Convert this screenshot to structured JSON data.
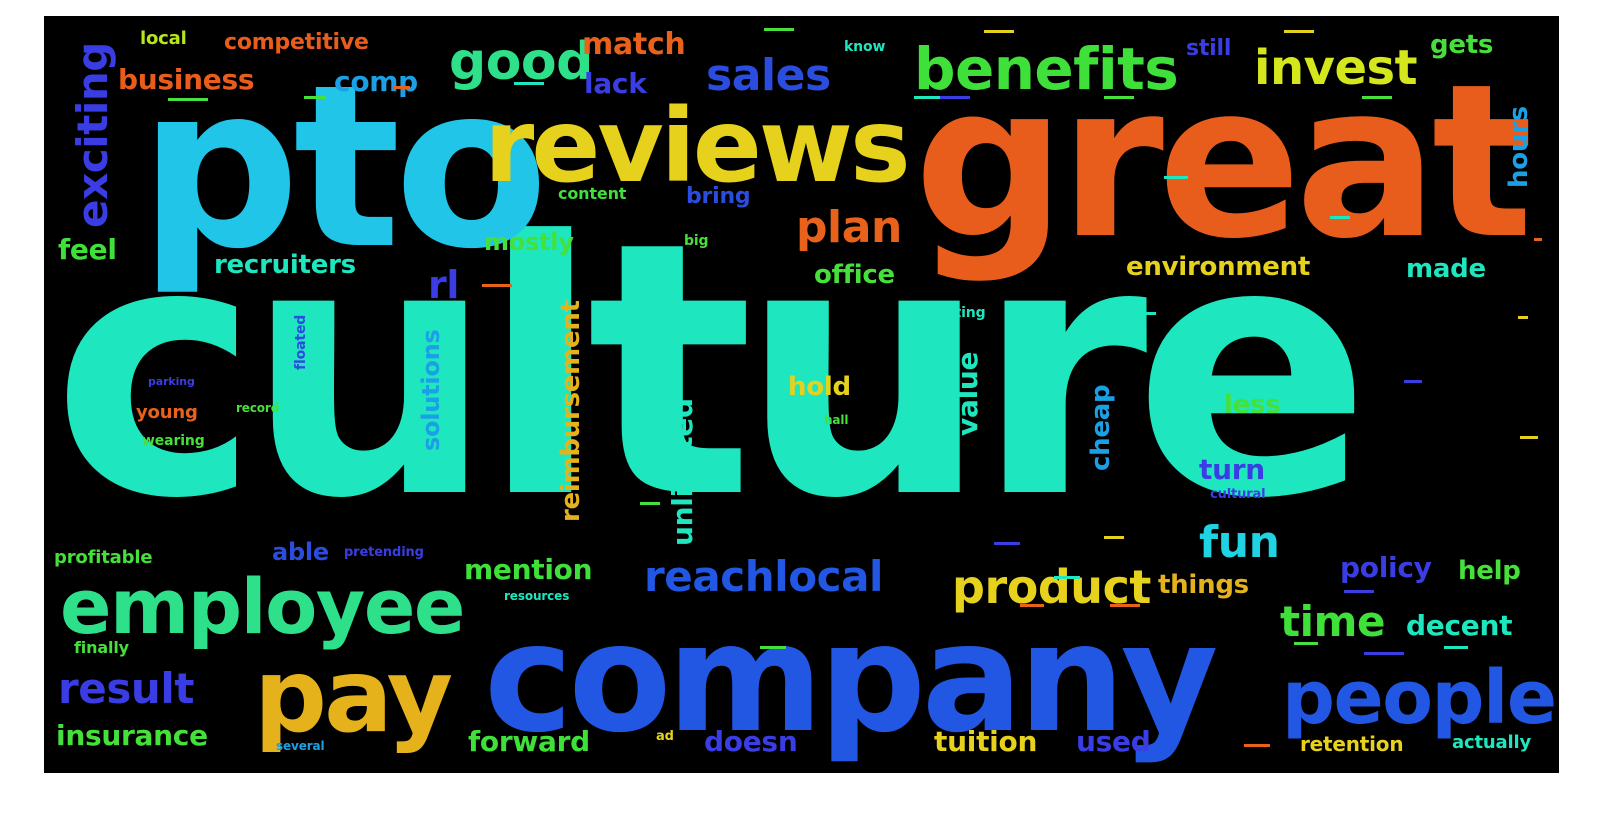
{
  "wordcloud": {
    "words": [
      {
        "id": "culture",
        "text": "culture",
        "color": "#1ee6bf"
      },
      {
        "id": "great",
        "text": "great",
        "color": "#e85d1c"
      },
      {
        "id": "pto",
        "text": "pto",
        "color": "#20c5e8"
      },
      {
        "id": "company",
        "text": "company",
        "color": "#2157e3"
      },
      {
        "id": "reviews",
        "text": "reviews",
        "color": "#e6d21c"
      },
      {
        "id": "employee",
        "text": "employee",
        "color": "#2fe08a"
      },
      {
        "id": "pay",
        "text": "pay",
        "color": "#e6b21c"
      },
      {
        "id": "people",
        "text": "people",
        "color": "#2157e3"
      },
      {
        "id": "benefits",
        "text": "benefits",
        "color": "#3fe03a"
      },
      {
        "id": "good",
        "text": "good",
        "color": "#2fe08a"
      },
      {
        "id": "invest",
        "text": "invest",
        "color": "#d4e61c"
      },
      {
        "id": "sales",
        "text": "sales",
        "color": "#2a4de0"
      },
      {
        "id": "product",
        "text": "product",
        "color": "#e6d21c"
      },
      {
        "id": "reachlocal",
        "text": "reachlocal",
        "color": "#2157e3"
      },
      {
        "id": "plan",
        "text": "plan",
        "color": "#e8621c"
      },
      {
        "id": "fun",
        "text": "fun",
        "color": "#20d3e3"
      },
      {
        "id": "time",
        "text": "time",
        "color": "#3fe03a"
      },
      {
        "id": "result",
        "text": "result",
        "color": "#3a3de3"
      },
      {
        "id": "exciting",
        "text": "exciting",
        "color": "#3a3de3"
      },
      {
        "id": "match",
        "text": "match",
        "color": "#e8621c"
      },
      {
        "id": "business",
        "text": "business",
        "color": "#e85d1c"
      },
      {
        "id": "comp",
        "text": "comp",
        "color": "#1ba0e6"
      },
      {
        "id": "lack",
        "text": "lack",
        "color": "#3a3de3"
      },
      {
        "id": "competitive",
        "text": "competitive",
        "color": "#e85d1c"
      },
      {
        "id": "local",
        "text": "local",
        "color": "#b8e61c"
      },
      {
        "id": "gets",
        "text": "gets",
        "color": "#46e03a"
      },
      {
        "id": "still",
        "text": "still",
        "color": "#3a3de3"
      },
      {
        "id": "hours",
        "text": "hours",
        "color": "#1ba0e6"
      },
      {
        "id": "feel",
        "text": "feel",
        "color": "#3fe03a"
      },
      {
        "id": "recruiters",
        "text": "recruiters",
        "color": "#1ee6bf"
      },
      {
        "id": "rl",
        "text": "rl",
        "color": "#3a3de3"
      },
      {
        "id": "mostly",
        "text": "mostly",
        "color": "#46e03a"
      },
      {
        "id": "office",
        "text": "office",
        "color": "#46e03a"
      },
      {
        "id": "environment",
        "text": "environment",
        "color": "#e6d21c"
      },
      {
        "id": "made",
        "text": "made",
        "color": "#1ee6bf"
      },
      {
        "id": "bring",
        "text": "bring",
        "color": "#2a4de0"
      },
      {
        "id": "content",
        "text": "content",
        "color": "#3fe03a"
      },
      {
        "id": "hold",
        "text": "hold",
        "color": "#e6d21c"
      },
      {
        "id": "value",
        "text": "value",
        "color": "#1ee6bf"
      },
      {
        "id": "cheap",
        "text": "cheap",
        "color": "#1ba0e6"
      },
      {
        "id": "less",
        "text": "less",
        "color": "#46e03a"
      },
      {
        "id": "turn",
        "text": "turn",
        "color": "#3a3de3"
      },
      {
        "id": "reimbursement",
        "text": "reimbursement",
        "color": "#e6b21c"
      },
      {
        "id": "unlimited",
        "text": "unlimited",
        "color": "#1ee6bf"
      },
      {
        "id": "solutions",
        "text": "solutions",
        "color": "#1ba0e6"
      },
      {
        "id": "young",
        "text": "young",
        "color": "#e8621c"
      },
      {
        "id": "able",
        "text": "able",
        "color": "#2a4de0"
      },
      {
        "id": "mention",
        "text": "mention",
        "color": "#3fe03a"
      },
      {
        "id": "profitable",
        "text": "profitable",
        "color": "#46e03a"
      },
      {
        "id": "insurance",
        "text": "insurance",
        "color": "#46e03a"
      },
      {
        "id": "forward",
        "text": "forward",
        "color": "#3fe03a"
      },
      {
        "id": "doesn",
        "text": "doesn",
        "color": "#3a3de3"
      },
      {
        "id": "tuition",
        "text": "tuition",
        "color": "#e6d21c"
      },
      {
        "id": "used",
        "text": "used",
        "color": "#3a3de3"
      },
      {
        "id": "things",
        "text": "things",
        "color": "#e6b21c"
      },
      {
        "id": "policy",
        "text": "policy",
        "color": "#3a3de3"
      },
      {
        "id": "help",
        "text": "help",
        "color": "#46e03a"
      },
      {
        "id": "decent",
        "text": "decent",
        "color": "#1ee6bf"
      },
      {
        "id": "retention",
        "text": "retention",
        "color": "#e6d21c"
      },
      {
        "id": "actually",
        "text": "actually",
        "color": "#1ee6bf"
      },
      {
        "id": "finally",
        "text": "finally",
        "color": "#46e03a"
      },
      {
        "id": "pretending",
        "text": "pretending",
        "color": "#3a3de3"
      },
      {
        "id": "wearing",
        "text": "wearing",
        "color": "#46e03a"
      },
      {
        "id": "record",
        "text": "record",
        "color": "#46e03a"
      },
      {
        "id": "cutting",
        "text": "cutting",
        "color": "#1ee6bf"
      },
      {
        "id": "cultural",
        "text": "cultural",
        "color": "#3a3de3"
      },
      {
        "id": "big",
        "text": "big",
        "color": "#46e03a"
      },
      {
        "id": "know",
        "text": "know",
        "color": "#1ee6bf"
      },
      {
        "id": "hall",
        "text": "hall",
        "color": "#46e03a"
      },
      {
        "id": "floated",
        "text": "floated",
        "color": "#2a4de0"
      },
      {
        "id": "resources",
        "text": "resources",
        "color": "#1ee6bf"
      },
      {
        "id": "several",
        "text": "several",
        "color": "#1ba0e6"
      },
      {
        "id": "ad",
        "text": "ad",
        "color": "#e6d21c"
      },
      {
        "id": "parking",
        "text": "parking",
        "color": "#3a3de3"
      }
    ]
  }
}
